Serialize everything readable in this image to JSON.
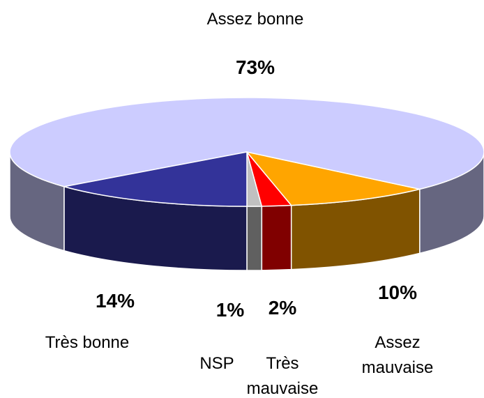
{
  "chart_data": {
    "type": "pie3d",
    "categories": [
      "NSP",
      "Très mauvaise",
      "Assez mauvaise",
      "Assez bonne",
      "Très bonne"
    ],
    "values": [
      1,
      2,
      10,
      73,
      14
    ],
    "value_labels": [
      "1%",
      "2%",
      "10%",
      "73%",
      "14%"
    ],
    "colors": [
      "#c0c0c0",
      "#ff0000",
      "#ffa500",
      "#ccccff",
      "#333399"
    ]
  }
}
